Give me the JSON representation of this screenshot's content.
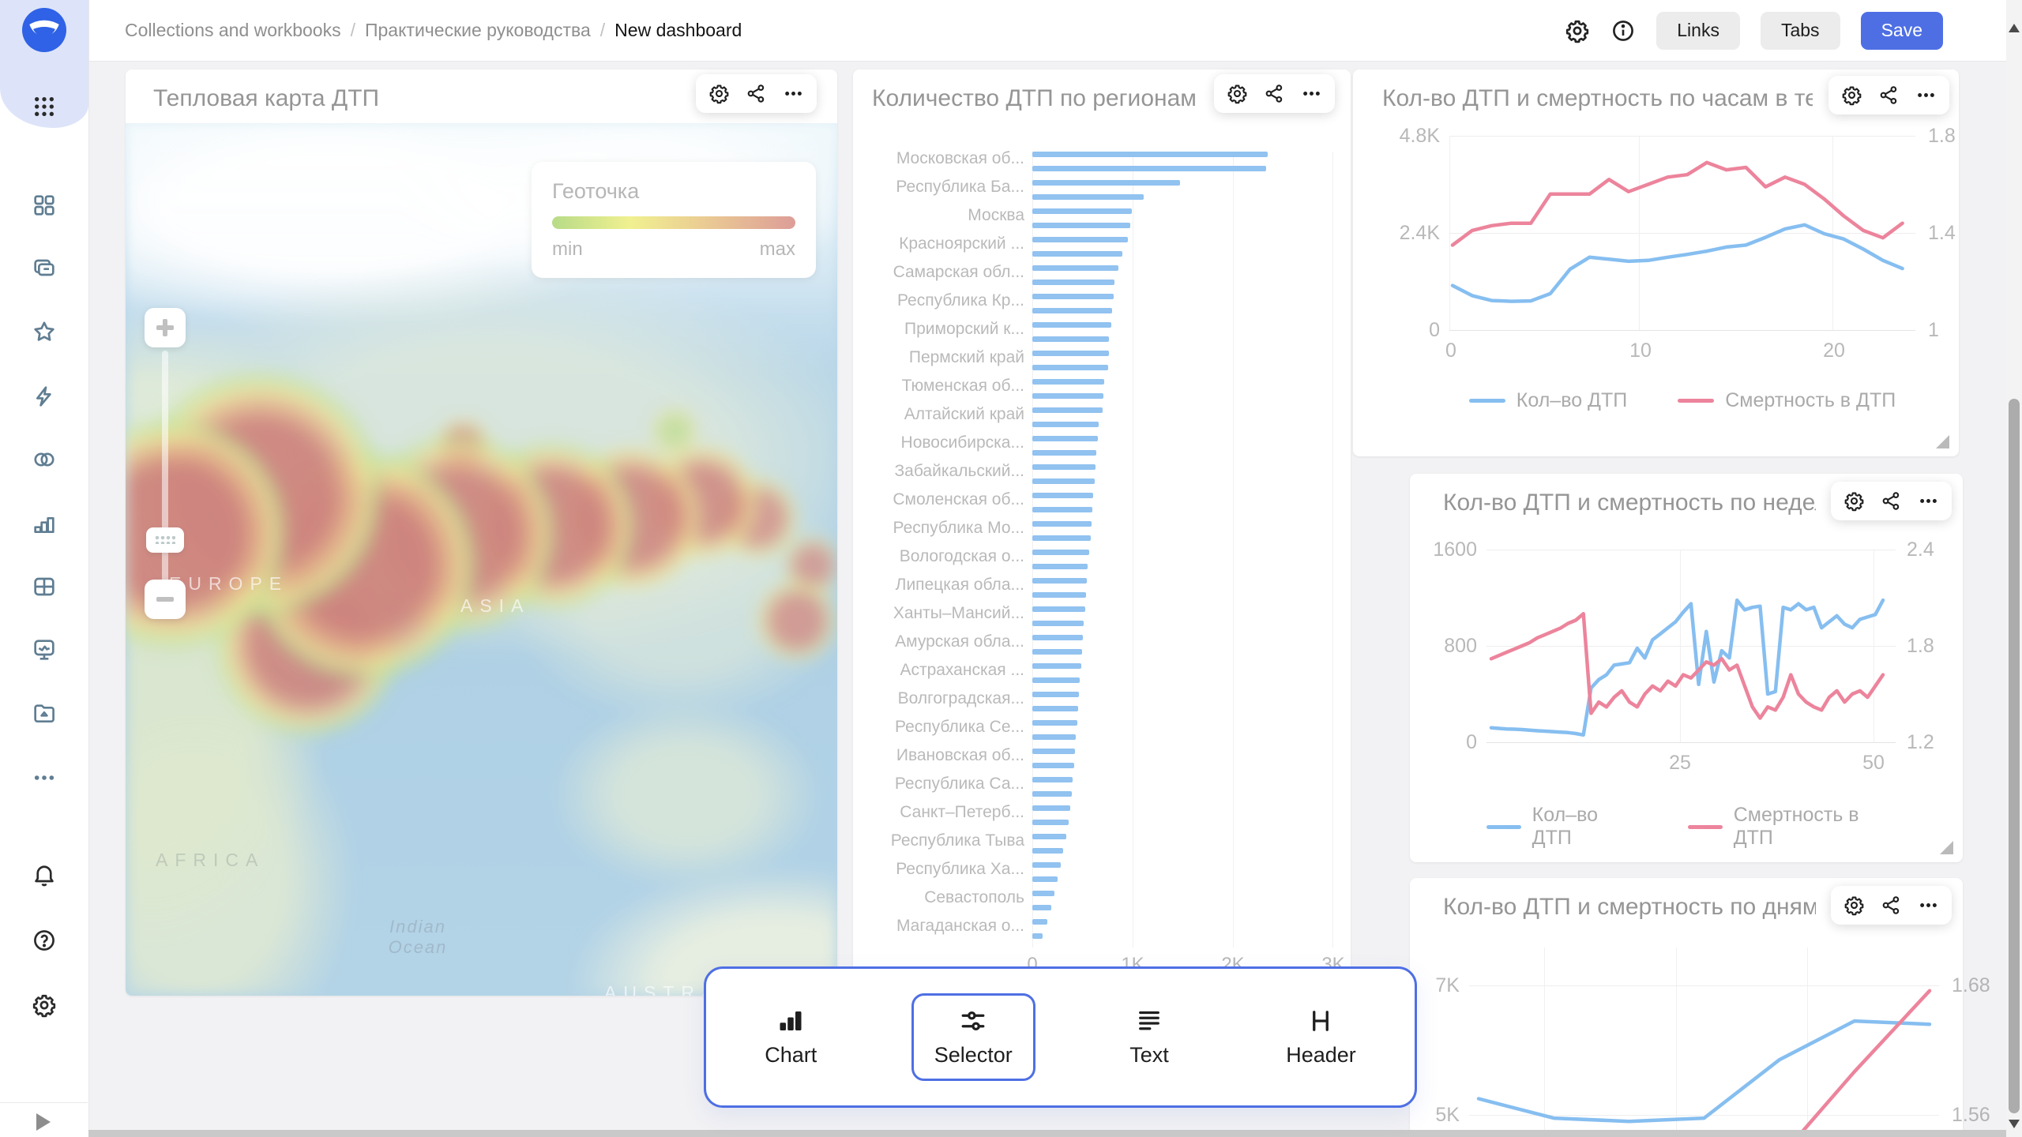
{
  "topbar": {
    "breadcrumbs": [
      "Collections and workbooks",
      "Практические руководства",
      "New dashboard"
    ],
    "separator": "/",
    "buttons": {
      "links": "Links",
      "tabs": "Tabs",
      "save": "Save"
    }
  },
  "sidebar": {
    "icons": [
      "datalens-logo",
      "apps-grid",
      "navigation",
      "collections",
      "favorites",
      "quick-start",
      "connections",
      "charts",
      "tables",
      "monitoring",
      "storage",
      "more",
      "notifications",
      "help",
      "settings",
      "expand"
    ]
  },
  "map_widget": {
    "title": "Тепловая карта ДТП",
    "legend": {
      "title": "Геоточка",
      "min": "min",
      "max": "max"
    },
    "map_labels": {
      "europe": "EUROPE",
      "asia": "ASIA",
      "africa": "AFRICA",
      "indian_ocean": "Indian Ocean",
      "australia": "AUSTRALIA"
    }
  },
  "toolbar": {
    "items": [
      {
        "label": "Chart",
        "icon": "chart-icon"
      },
      {
        "label": "Selector",
        "icon": "selector-icon"
      },
      {
        "label": "Text",
        "icon": "text-icon"
      },
      {
        "label": "Header",
        "icon": "header-icon"
      }
    ],
    "active_item": "Selector"
  },
  "colors": {
    "accent": "#4e6fe4",
    "line_blue": "#3d97e8",
    "line_pink": "#e23a60",
    "bar_blue": "#4f9de8",
    "heat_min": "#8cc63f",
    "heat_max": "#c9625a"
  },
  "chart_data": [
    {
      "id": "regions",
      "type": "bar",
      "title": "Количество ДТП по регионам",
      "orientation": "horizontal",
      "xlim": [
        0,
        3000
      ],
      "x_ticks": [
        "0",
        "1K",
        "2K",
        "3K"
      ],
      "label_every": 2,
      "color": "#4f9de8",
      "categories": [
        "Московская об...",
        "Республика Ба...",
        "Москва",
        "Красноярский ...",
        "Самарская обл...",
        "Республика Кр...",
        "Приморский к...",
        "Пермский край",
        "Тюменская об...",
        "Алтайский край",
        "Новосибирска...",
        "Забайкальский...",
        "Смоленская об...",
        "Республика Мо...",
        "Вологодская о...",
        "Липецкая обла...",
        "Ханты–Мансий...",
        "Амурская обла...",
        "Астраханская ...",
        "Волгоградская...",
        "Республика Се...",
        "Ивановская об...",
        "Республика Са...",
        "Санкт–Петерб...",
        "Республика Тыва",
        "Республика Ха...",
        "Севастополь",
        "Магаданская о..."
      ],
      "values": [
        2350,
        2330,
        1470,
        1110,
        990,
        975,
        955,
        900,
        860,
        820,
        810,
        795,
        790,
        765,
        760,
        755,
        715,
        710,
        700,
        665,
        650,
        640,
        630,
        620,
        610,
        600,
        590,
        580,
        570,
        555,
        545,
        535,
        525,
        515,
        505,
        495,
        485,
        475,
        465,
        455,
        445,
        435,
        425,
        415,
        405,
        395,
        380,
        360,
        340,
        310,
        280,
        250,
        220,
        190,
        150,
        100
      ]
    },
    {
      "id": "hours",
      "type": "line",
      "title": "Кол-во ДТП и смертность по часам в теч",
      "x_ticks": [
        "0",
        "10",
        "20"
      ],
      "left_ticks": [
        "4.8K",
        "2.4K",
        "0"
      ],
      "right_ticks": [
        "1.8",
        "1.4",
        "1"
      ],
      "left_ylim": [
        0,
        4800
      ],
      "right_ylim": [
        1,
        1.8
      ],
      "xlim": [
        0,
        24
      ],
      "series": [
        {
          "name": "Кол–во ДТП",
          "axis": "left",
          "color": "#3d97e8",
          "values": [
            1100,
            850,
            730,
            710,
            720,
            900,
            1500,
            1800,
            1750,
            1700,
            1720,
            1800,
            1870,
            1950,
            2050,
            2100,
            2290,
            2500,
            2600,
            2380,
            2250,
            2000,
            1720,
            1520
          ]
        },
        {
          "name": "Смертность в ДТП",
          "axis": "right",
          "color": "#e23a60",
          "values": [
            1.35,
            1.41,
            1.43,
            1.44,
            1.44,
            1.56,
            1.56,
            1.56,
            1.62,
            1.57,
            1.6,
            1.63,
            1.64,
            1.69,
            1.66,
            1.67,
            1.59,
            1.63,
            1.6,
            1.54,
            1.47,
            1.41,
            1.38,
            1.44
          ]
        }
      ]
    },
    {
      "id": "weeks",
      "type": "line",
      "title": "Кол-во ДТП и смертность по недел",
      "x_ticks": [
        "25",
        "50"
      ],
      "left_ticks": [
        "1600",
        "800",
        "0"
      ],
      "right_ticks": [
        "2.4",
        "1.8",
        "1.2"
      ],
      "left_ylim": [
        0,
        1600
      ],
      "right_ylim": [
        1.2,
        2.4
      ],
      "xlim": [
        1,
        52
      ],
      "series": [
        {
          "name": "Кол–во ДТП",
          "axis": "left",
          "color": "#3d97e8",
          "values": [
            120,
            115,
            110,
            108,
            105,
            100,
            95,
            92,
            88,
            84,
            80,
            72,
            60,
            450,
            520,
            560,
            640,
            650,
            660,
            780,
            700,
            850,
            900,
            950,
            1000,
            1080,
            1150,
            480,
            920,
            500,
            760,
            700,
            1180,
            1100,
            1120,
            1130,
            400,
            420,
            1120,
            1100,
            1150,
            1100,
            1120,
            950,
            1000,
            1050,
            980,
            950,
            1020,
            1040,
            1060,
            1180
          ]
        },
        {
          "name": "Смертность в ДТП",
          "axis": "right",
          "color": "#e23a60",
          "values": [
            1.72,
            1.74,
            1.76,
            1.78,
            1.8,
            1.82,
            1.85,
            1.87,
            1.89,
            1.91,
            1.94,
            1.96,
            2.0,
            1.38,
            1.45,
            1.42,
            1.48,
            1.52,
            1.45,
            1.42,
            1.5,
            1.55,
            1.52,
            1.58,
            1.55,
            1.62,
            1.6,
            1.65,
            1.7,
            1.68,
            1.72,
            1.65,
            1.68,
            1.55,
            1.42,
            1.35,
            1.42,
            1.4,
            1.48,
            1.62,
            1.5,
            1.45,
            1.42,
            1.4,
            1.48,
            1.52,
            1.45,
            1.5,
            1.52,
            1.48,
            1.55,
            1.62
          ]
        }
      ]
    },
    {
      "id": "days",
      "type": "line",
      "title": "Кол-во ДТП и смертность по дням н",
      "x_ticks": [],
      "left_ticks": [
        "7K",
        "5K"
      ],
      "right_ticks": [
        "1.68",
        "1.56"
      ],
      "left_ylim": [
        5000,
        7000
      ],
      "right_ylim": [
        1.56,
        1.68
      ],
      "series": [
        {
          "name": "Кол–во ДТП",
          "axis": "left",
          "color": "#3d97e8",
          "values": [
            5250,
            4950,
            4900,
            4950,
            5850,
            6450,
            6400
          ]
        },
        {
          "name": "Смертность в ДТП",
          "axis": "right",
          "color": "#e23a60",
          "values": [
            1.52,
            1.49,
            1.53,
            1.52,
            1.52,
            1.6,
            1.675
          ]
        }
      ]
    }
  ]
}
